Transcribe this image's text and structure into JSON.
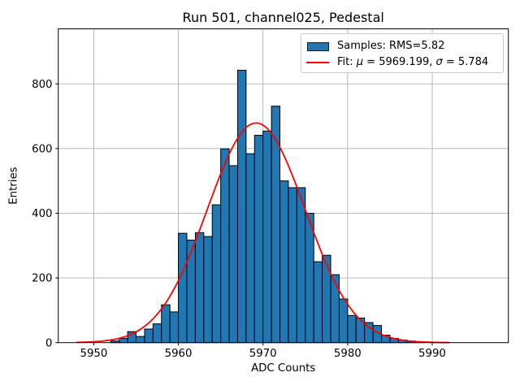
{
  "figure": {
    "title": "Run 501, channel025, Pedestal",
    "xlabel": "ADC Counts",
    "ylabel": "Entries"
  },
  "legend": {
    "samples_label": "Samples: RMS=5.82",
    "fit_label_parts": [
      {
        "t": "Fit: "
      },
      {
        "t": "μ",
        "i": true
      },
      {
        "t": " = 5969.199, "
      },
      {
        "t": "σ",
        "i": true
      },
      {
        "t": " = 5.784"
      }
    ],
    "swatch_color": "#1f77b4",
    "line_color": "#ff0000"
  },
  "chart_data": {
    "type": "bar",
    "subtype": "histogram-with-gaussian-fit",
    "title": "Run 501, channel025, Pedestal",
    "xlabel": "ADC Counts",
    "ylabel": "Entries",
    "xlim": [
      5945.8,
      5999.0
    ],
    "ylim": [
      0,
      970
    ],
    "xticks": [
      5950,
      5960,
      5970,
      5980,
      5990
    ],
    "yticks": [
      0,
      200,
      400,
      600,
      800
    ],
    "grid": true,
    "grid_color": "#b0b0b0",
    "legend_position": "upper right",
    "histogram": {
      "label": "Samples: RMS=5.82",
      "rms": 5.82,
      "bin_width": 1,
      "bin_start": 5952,
      "counts": [
        5,
        13,
        34,
        19,
        42,
        58,
        117,
        95,
        338,
        317,
        340,
        328,
        426,
        599,
        547,
        842,
        584,
        641,
        654,
        731,
        500,
        479,
        479,
        400,
        250,
        270,
        210,
        135,
        84,
        76,
        62,
        53,
        23,
        13,
        8,
        5,
        3
      ],
      "fill_color": "#1f77b4",
      "edge_color": "#000000"
    },
    "fit": {
      "label": "Fit: μ = 5969.199, σ = 5.784",
      "mu": 5969.199,
      "sigma": 5.784,
      "amplitude": 679,
      "x_range": [
        5948,
        5992
      ],
      "color": "#ff0000"
    }
  }
}
